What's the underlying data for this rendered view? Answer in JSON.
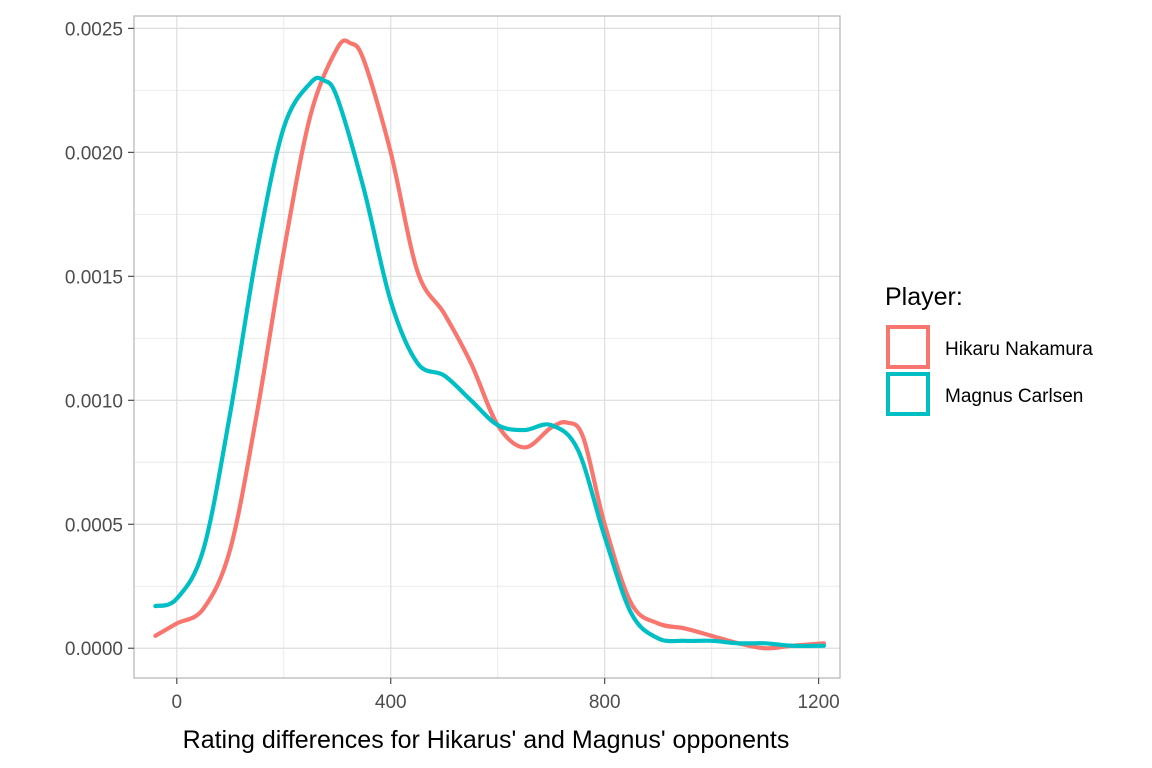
{
  "chart_data": {
    "type": "line",
    "title": "",
    "xlabel": "Rating differences for Hikarus' and Magnus' opponents",
    "ylabel": "",
    "xlim": [
      -80,
      1240
    ],
    "ylim": [
      -0.00012,
      0.00255
    ],
    "x_ticks": [
      0,
      400,
      800,
      1200
    ],
    "x_tick_labels": [
      "0",
      "400",
      "800",
      "1200"
    ],
    "y_ticks": [
      0.0,
      0.0005,
      0.001,
      0.0015,
      0.002,
      0.0025
    ],
    "y_tick_labels": [
      "0.0000",
      "0.0005",
      "0.0010",
      "0.0015",
      "0.0020",
      "0.0025"
    ],
    "grid": true,
    "legend": {
      "title": "Player:",
      "position": "right"
    },
    "series": [
      {
        "name": "Hikaru Nakamura",
        "color": "#F8766D",
        "x": [
          -40,
          0,
          50,
          100,
          150,
          200,
          250,
          300,
          325,
          350,
          400,
          450,
          500,
          550,
          600,
          650,
          700,
          730,
          760,
          800,
          850,
          900,
          950,
          1000,
          1050,
          1100,
          1150,
          1210
        ],
        "y": [
          5e-05,
          0.0001,
          0.00016,
          0.0004,
          0.00095,
          0.0016,
          0.00215,
          0.00242,
          0.00244,
          0.00237,
          0.002,
          0.00152,
          0.00135,
          0.00115,
          0.0009,
          0.00081,
          0.00089,
          0.00091,
          0.00085,
          0.0005,
          0.00018,
          0.0001,
          8e-05,
          5e-05,
          2e-05,
          0.0,
          1e-05,
          2e-05
        ]
      },
      {
        "name": "Magnus Carlsen",
        "color": "#00BFC4",
        "x": [
          -40,
          0,
          50,
          100,
          150,
          200,
          250,
          275,
          300,
          350,
          400,
          450,
          500,
          550,
          600,
          650,
          700,
          750,
          800,
          850,
          900,
          950,
          1000,
          1050,
          1100,
          1150,
          1210
        ],
        "y": [
          0.00017,
          0.0002,
          0.0004,
          0.00095,
          0.0016,
          0.0021,
          0.00228,
          0.00229,
          0.00222,
          0.00185,
          0.0014,
          0.00115,
          0.0011,
          0.001,
          0.0009,
          0.00088,
          0.0009,
          0.0008,
          0.00045,
          0.00014,
          4e-05,
          3e-05,
          3e-05,
          2e-05,
          2e-05,
          1e-05,
          1e-05
        ]
      }
    ]
  }
}
